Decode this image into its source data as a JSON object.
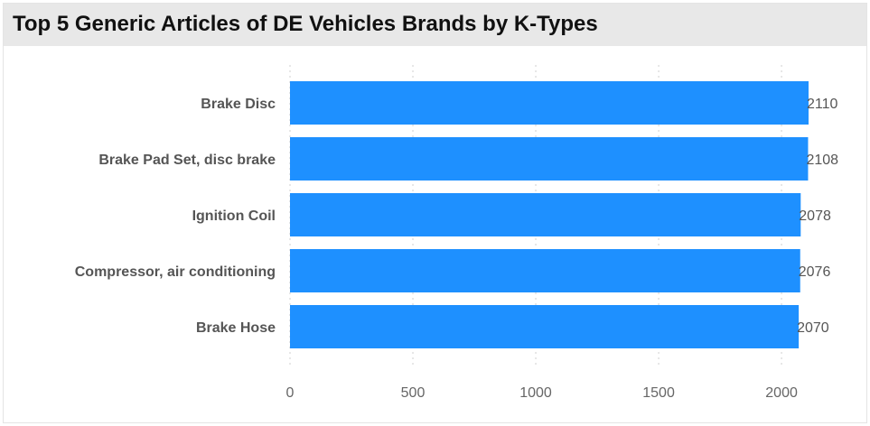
{
  "chart_data": {
    "type": "bar",
    "orientation": "horizontal",
    "title": "Top 5 Generic Articles of DE Vehicles Brands by K-Types",
    "categories": [
      "Brake Disc",
      "Brake Pad Set, disc brake",
      "Ignition Coil",
      "Compressor, air conditioning",
      "Brake Hose"
    ],
    "values": [
      2110,
      2108,
      2078,
      2076,
      2070
    ],
    "xticks": [
      0,
      500,
      1000,
      1500,
      2000
    ],
    "xlim": [
      0,
      2110
    ],
    "grid": true,
    "bar_color": "#1e90ff"
  }
}
